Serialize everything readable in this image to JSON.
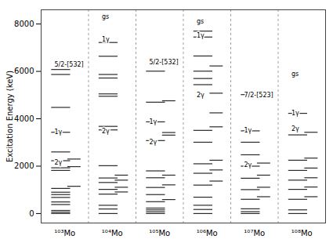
{
  "chart_data": {
    "type": "levels",
    "categories": [
      "¹⁰³Mo",
      "¹⁰⁴Mo",
      "¹⁰⁵Mo",
      "¹⁰⁶Mo",
      "¹⁰⁷Mo",
      "¹⁰⁸Mo"
    ],
    "color": "#2a2a2a",
    "series": [
      {
        "values": [
          [
            0,
            60,
            130,
            380,
            490,
            680,
            800,
            900,
            1060,
            1820,
            1930,
            2230,
            2600,
            3430,
            4480,
            5870,
            6080
          ],
          [
            0,
            192,
            348,
            820,
            1020,
            1310,
            1500,
            2020,
            3530,
            3680,
            4950,
            5050,
            5720,
            5870,
            6640,
            7220
          ],
          [
            0,
            75,
            155,
            230,
            500,
            800,
            1100,
            1510,
            1800,
            3080,
            3870,
            4700,
            6010
          ],
          [
            0,
            172,
            350,
            690,
            1200,
            1700,
            2100,
            3010,
            3510,
            5440,
            5700,
            6010,
            6650,
            7450,
            7700
          ],
          [
            0,
            80,
            200,
            600,
            1010,
            1490,
            2000,
            2480,
            3010,
            3490,
            5020
          ],
          [
            0,
            155,
            600,
            1020,
            1410,
            1820,
            2250,
            3320,
            4230
          ]
        ]
      },
      {
        "values": [
          [
            1150,
            1980,
            2300
          ],
          [
            910,
            1110,
            1410,
            1620
          ],
          [
            590,
            1210,
            1620,
            3310,
            3420,
            4760
          ],
          [
            1370,
            1840,
            2250,
            3660,
            4250,
            5080,
            6230
          ],
          [
            710,
            1110,
            1620,
            2130
          ],
          [
            710,
            1120,
            1510,
            1920,
            2340,
            3430
          ]
        ]
      }
    ],
    "ylabel": "Excitation Energy (keV)",
    "ylim": [
      -400,
      8600
    ],
    "yticks": [
      0,
      2000,
      4000,
      6000,
      8000
    ],
    "grid": false,
    "annotations": [
      {
        "category": "¹⁰³Mo",
        "text": "5/2-[532]",
        "y": 6270
      },
      {
        "category": "¹⁰³Mo",
        "text": "1γ",
        "y": 3430
      },
      {
        "category": "¹⁰³Mo",
        "text": "2γ",
        "y": 2150
      },
      {
        "category": "¹⁰⁴Mo",
        "text": "gs",
        "y": 8320
      },
      {
        "category": "¹⁰⁴Mo",
        "text": "1γ",
        "y": 7350
      },
      {
        "category": "¹⁰⁴Mo",
        "text": "2γ",
        "y": 3480
      },
      {
        "category": "¹⁰⁵Mo",
        "text": "5/2-[532]",
        "y": 6380
      },
      {
        "category": "¹⁰⁵Mo",
        "text": "1γ",
        "y": 3870
      },
      {
        "category": "¹⁰⁵Mo",
        "text": "2γ",
        "y": 3000
      },
      {
        "category": "¹⁰⁶Mo",
        "text": "gs",
        "y": 8120
      },
      {
        "category": "¹⁰⁶Mo",
        "text": "1γ",
        "y": 7520
      },
      {
        "category": "¹⁰⁶Mo",
        "text": "2γ",
        "y": 5000
      },
      {
        "category": "¹⁰⁷Mo",
        "text": "7/2-[523]",
        "y": 4980
      },
      {
        "category": "¹⁰⁷Mo",
        "text": "1γ",
        "y": 3490
      },
      {
        "category": "¹⁰⁷Mo",
        "text": "2γ",
        "y": 2060
      },
      {
        "category": "¹⁰⁸Mo",
        "text": "gs",
        "y": 5900
      },
      {
        "category": "¹⁰⁸Mo",
        "text": "1γ",
        "y": 4230
      },
      {
        "category": "¹⁰⁸Mo",
        "text": "2γ",
        "y": 3560
      }
    ]
  }
}
